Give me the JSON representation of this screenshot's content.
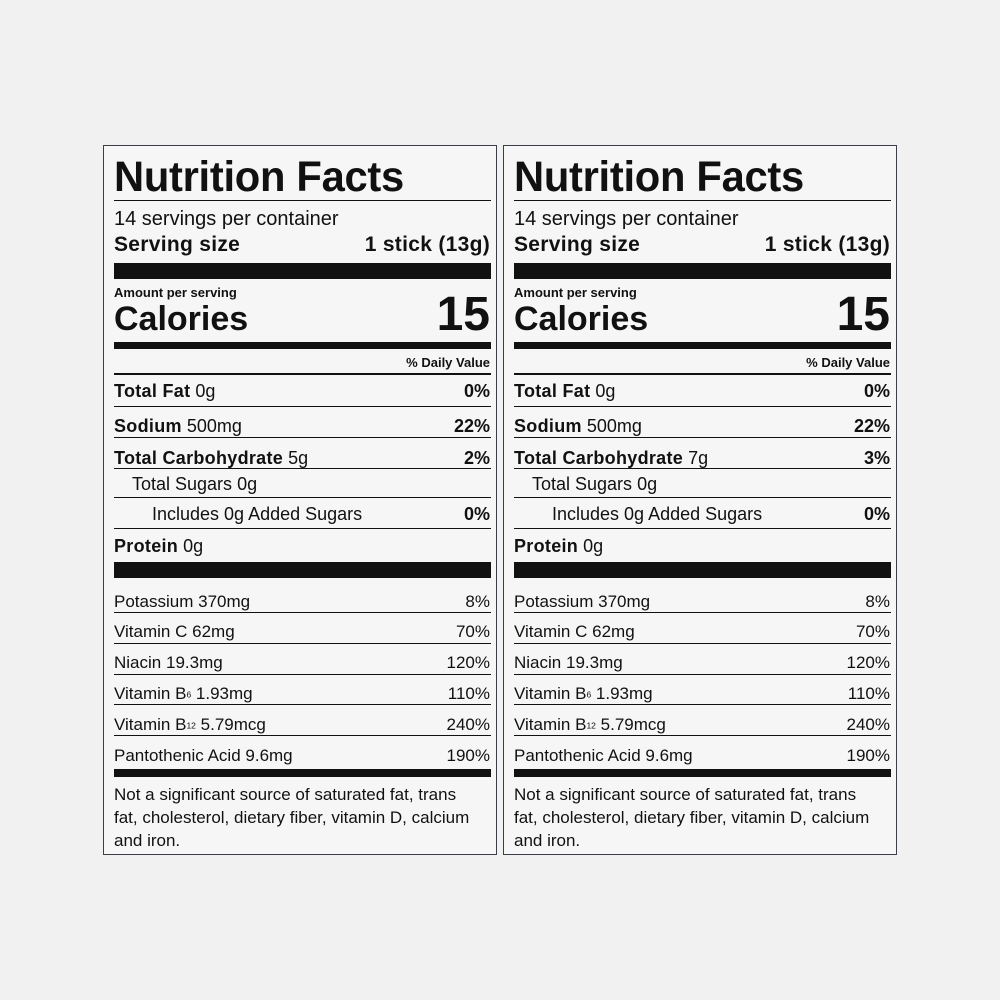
{
  "labels": [
    {
      "title": "Nutrition Facts",
      "servings": "14 servings per container",
      "serving_size": {
        "label": "Serving size",
        "value": "1 stick (13g)"
      },
      "amount_per_serving": "Amount per serving",
      "calories": {
        "label": "Calories",
        "value": "15"
      },
      "daily_value_header": "% Daily Value",
      "total_fat": {
        "name": "Total Fat",
        "amount": "0g",
        "dv": "0%"
      },
      "sodium": {
        "name": "Sodium",
        "amount": "500mg",
        "dv": "22%"
      },
      "total_carbohydrate": {
        "name": "Total Carbohydrate",
        "amount": "5g",
        "dv": "2%"
      },
      "total_sugars": {
        "name": "Total Sugars",
        "amount": "0g"
      },
      "added_sugars": {
        "name": "Includes 0g Added Sugars",
        "dv": "0%"
      },
      "protein": {
        "name": "Protein",
        "amount": "0g"
      },
      "vitamins": [
        {
          "name": "Potassium",
          "amount": "370mg",
          "dv": "8%"
        },
        {
          "name": "Vitamin C",
          "amount": "62mg",
          "dv": "70%"
        },
        {
          "name": "Niacin",
          "amount": "19.3mg",
          "dv": "120%"
        },
        {
          "name": "Vitamin B",
          "sub": "6",
          "amount": "1.93mg",
          "dv": "110%"
        },
        {
          "name": "Vitamin B",
          "sub": "12",
          "amount": "5.79mcg",
          "dv": "240%"
        },
        {
          "name": "Pantothenic Acid",
          "amount": "9.6mg",
          "dv": "190%"
        }
      ],
      "footnote": "Not a significant source of saturated fat, trans fat, cholesterol, dietary fiber, vitamin D, calcium and iron."
    },
    {
      "title": "Nutrition Facts",
      "servings": "14 servings per container",
      "serving_size": {
        "label": "Serving size",
        "value": "1 stick (13g)"
      },
      "amount_per_serving": "Amount per serving",
      "calories": {
        "label": "Calories",
        "value": "15"
      },
      "daily_value_header": "% Daily Value",
      "total_fat": {
        "name": "Total Fat",
        "amount": "0g",
        "dv": "0%"
      },
      "sodium": {
        "name": "Sodium",
        "amount": "500mg",
        "dv": "22%"
      },
      "total_carbohydrate": {
        "name": "Total Carbohydrate",
        "amount": "7g",
        "dv": "3%"
      },
      "total_sugars": {
        "name": "Total Sugars",
        "amount": "0g"
      },
      "added_sugars": {
        "name": "Includes 0g Added Sugars",
        "dv": "0%"
      },
      "protein": {
        "name": "Protein",
        "amount": "0g"
      },
      "vitamins": [
        {
          "name": "Potassium",
          "amount": "370mg",
          "dv": "8%"
        },
        {
          "name": "Vitamin C",
          "amount": "62mg",
          "dv": "70%"
        },
        {
          "name": "Niacin",
          "amount": "19.3mg",
          "dv": "120%"
        },
        {
          "name": "Vitamin B",
          "sub": "6",
          "amount": "1.93mg",
          "dv": "110%"
        },
        {
          "name": "Vitamin B",
          "sub": "12",
          "amount": "5.79mcg",
          "dv": "240%"
        },
        {
          "name": "Pantothenic Acid",
          "amount": "9.6mg",
          "dv": "190%"
        }
      ],
      "footnote": "Not a significant source of saturated fat, trans fat, cholesterol, dietary fiber, vitamin D, calcium and iron."
    }
  ]
}
